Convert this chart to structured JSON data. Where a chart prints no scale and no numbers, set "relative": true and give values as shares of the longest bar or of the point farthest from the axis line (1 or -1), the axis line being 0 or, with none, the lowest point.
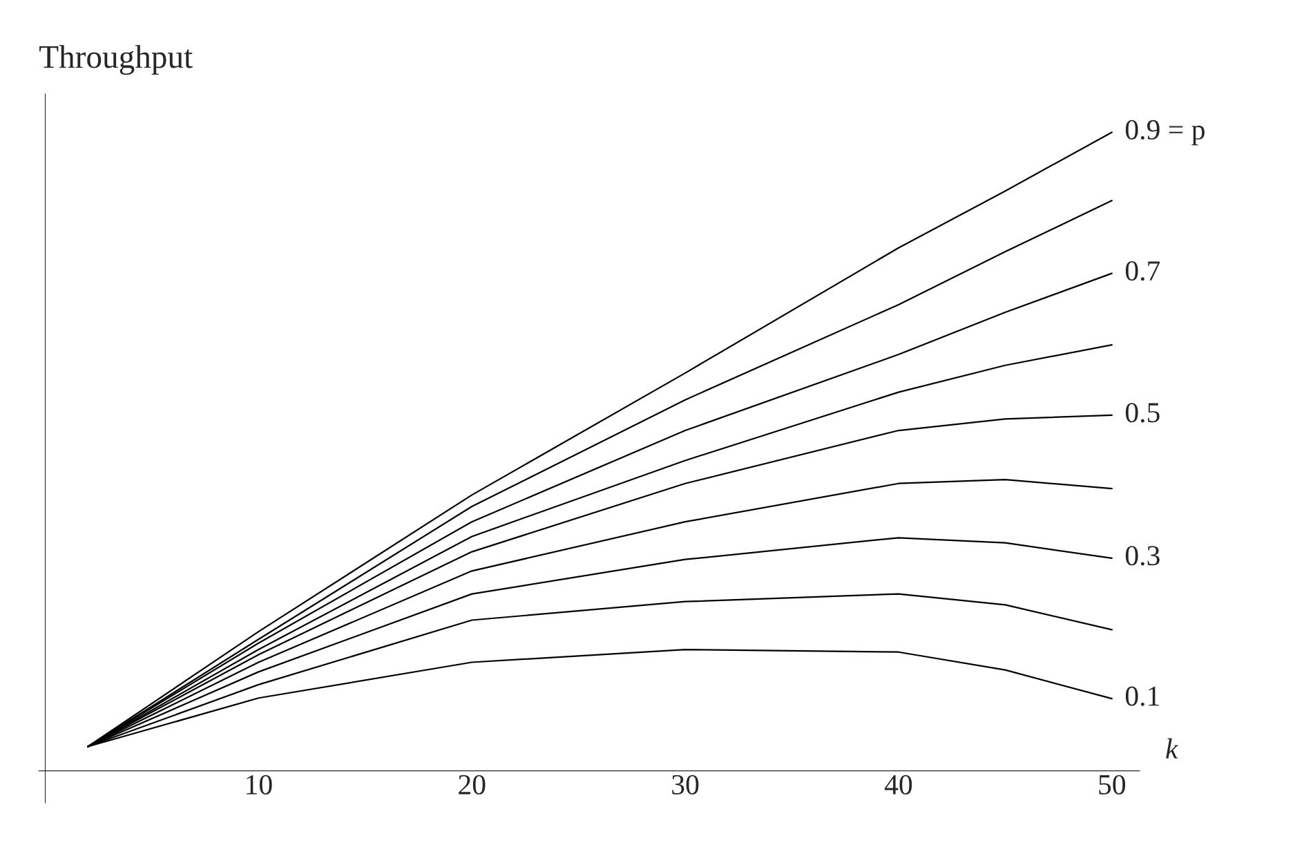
{
  "chart_data": {
    "type": "line",
    "relative": true,
    "ylabel": "Throughput",
    "xlabel": "k",
    "x": [
      2,
      10,
      20,
      30,
      40,
      45,
      50
    ],
    "xlim": [
      -0.3,
      51.3
    ],
    "xticks": [
      10,
      20,
      30,
      40,
      50
    ],
    "tick_labels": "x",
    "grid": false,
    "legend": false,
    "marker": "none",
    "line_style": "solid",
    "series": [
      {
        "name": "0.9 = p",
        "color": "#000000",
        "values": [
          0.038,
          0.218,
          0.432,
          0.623,
          0.819,
          0.908,
          1.0
        ]
      },
      {
        "color": "#000000",
        "values": [
          0.038,
          0.206,
          0.414,
          0.581,
          0.73,
          0.813,
          0.893
        ]
      },
      {
        "name": "0.7",
        "color": "#000000",
        "values": [
          0.038,
          0.2,
          0.39,
          0.533,
          0.652,
          0.718,
          0.779
        ]
      },
      {
        "color": "#000000",
        "values": [
          0.038,
          0.19,
          0.367,
          0.486,
          0.593,
          0.635,
          0.667
        ]
      },
      {
        "name": "0.5",
        "color": "#000000",
        "values": [
          0.038,
          0.182,
          0.343,
          0.45,
          0.533,
          0.551,
          0.557
        ]
      },
      {
        "color": "#000000",
        "values": [
          0.038,
          0.17,
          0.313,
          0.39,
          0.45,
          0.456,
          0.442
        ]
      },
      {
        "name": "0.3",
        "color": "#000000",
        "values": [
          0.038,
          0.155,
          0.277,
          0.331,
          0.365,
          0.357,
          0.333
        ]
      },
      {
        "color": "#000000",
        "values": [
          0.038,
          0.135,
          0.236,
          0.265,
          0.277,
          0.26,
          0.221
        ]
      },
      {
        "name": "0.1",
        "color": "#000000",
        "values": [
          0.038,
          0.114,
          0.17,
          0.19,
          0.186,
          0.158,
          0.113
        ]
      }
    ]
  }
}
